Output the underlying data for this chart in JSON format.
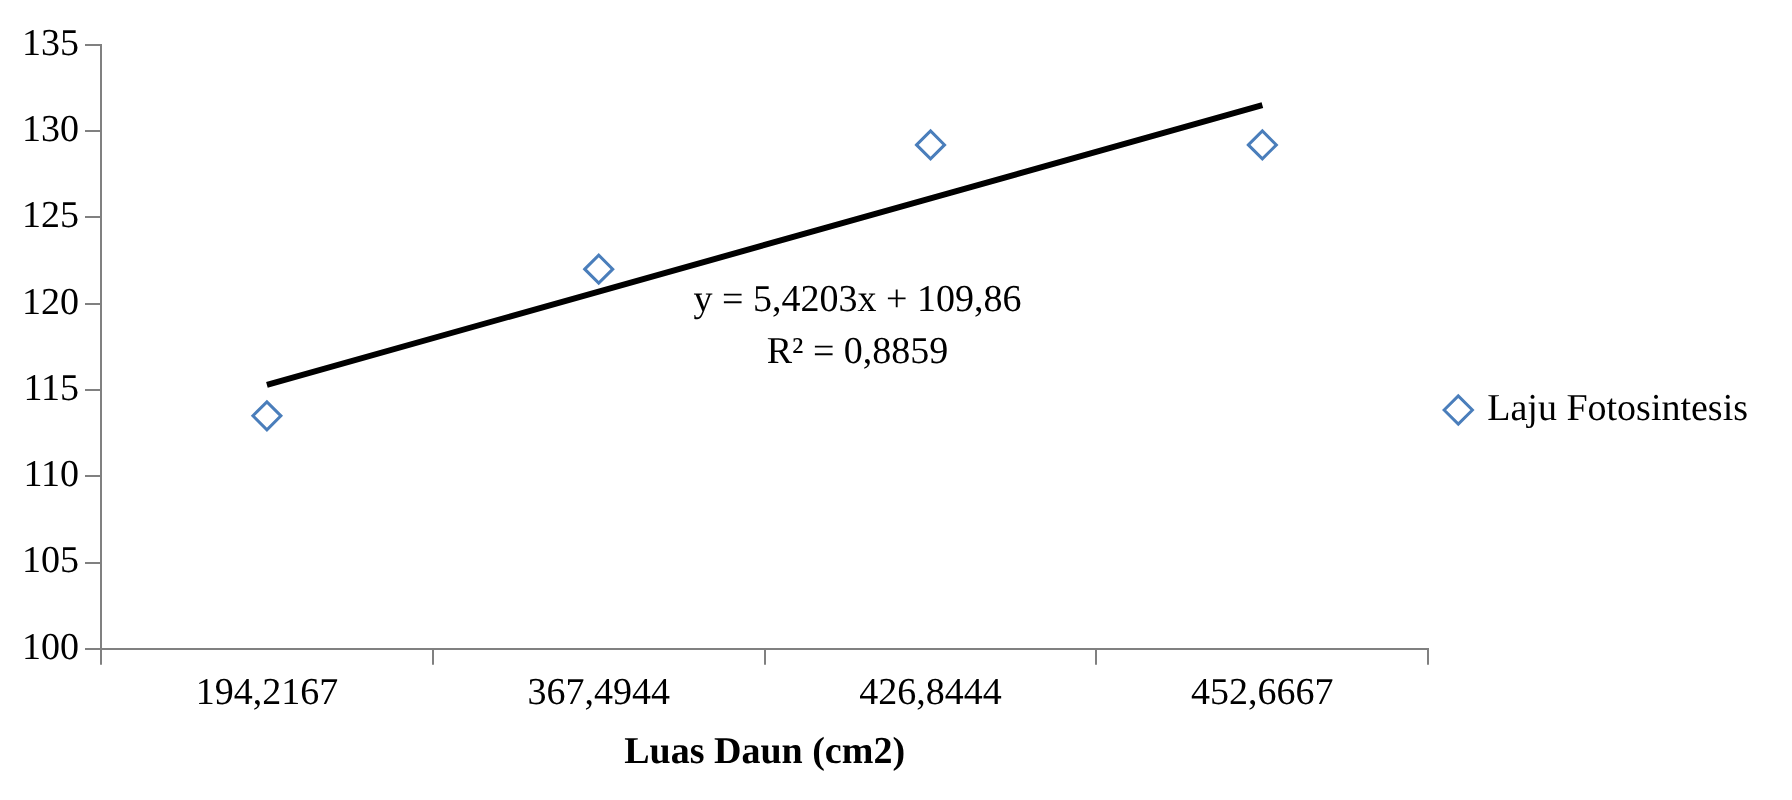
{
  "chart_data": {
    "type": "scatter",
    "xlabel": "Luas Daun (cm2)",
    "categories": [
      "194,2167",
      "367,4944",
      "426,8444",
      "452,6667"
    ],
    "series": [
      {
        "name": "Laju Fotosintesis",
        "color": "#4a7ebb",
        "marker": "diamond",
        "values": [
          113.5,
          122,
          129.2,
          129.2
        ]
      },
      {
        "type": "line",
        "color": "#000000",
        "values": [
          115.3,
          120.7,
          126.1,
          131.5
        ]
      }
    ],
    "ylim": [
      100,
      135
    ],
    "yticks": [
      100,
      105,
      110,
      115,
      120,
      125,
      130,
      135
    ],
    "grid": false,
    "legend": "right",
    "annotations": [
      "y = 5,4203x + 109,86",
      "R² = 0,8859"
    ]
  }
}
